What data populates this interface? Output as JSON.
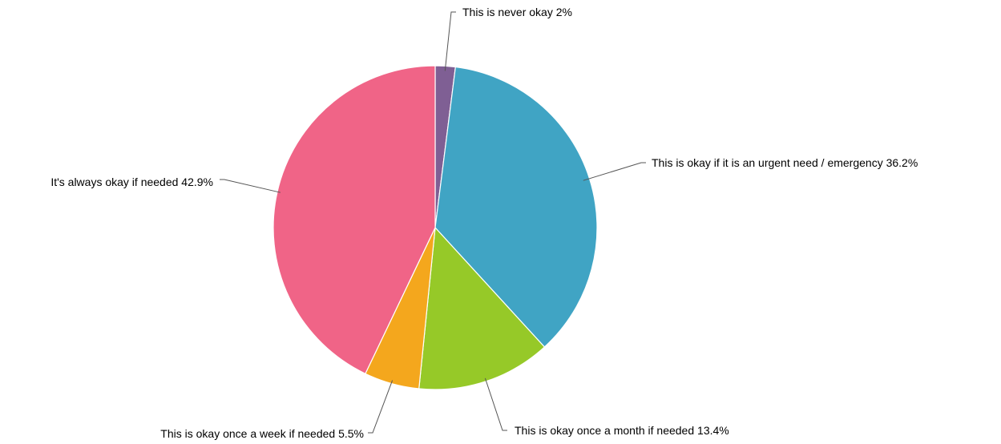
{
  "chart_data": {
    "type": "pie",
    "title": "",
    "slices": [
      {
        "label": "This is never okay",
        "value": 2,
        "display": "2%",
        "color": "#7f5f94"
      },
      {
        "label": "This is okay if it is an urgent need / emergency",
        "value": 36.2,
        "display": "36.2%",
        "color": "#40a4c4"
      },
      {
        "label": "This is okay once a month if needed",
        "value": 13.4,
        "display": "13.4%",
        "color": "#96c928"
      },
      {
        "label": "This is okay once a week if needed",
        "value": 5.5,
        "display": "5.5%",
        "color": "#f4a71d"
      },
      {
        "label": "It's always okay if needed",
        "value": 42.9,
        "display": "42.9%",
        "color": "#f06487"
      }
    ],
    "start_angle": "top (12 o'clock)",
    "direction": "clockwise",
    "legend": "none (labels with leader lines)"
  }
}
